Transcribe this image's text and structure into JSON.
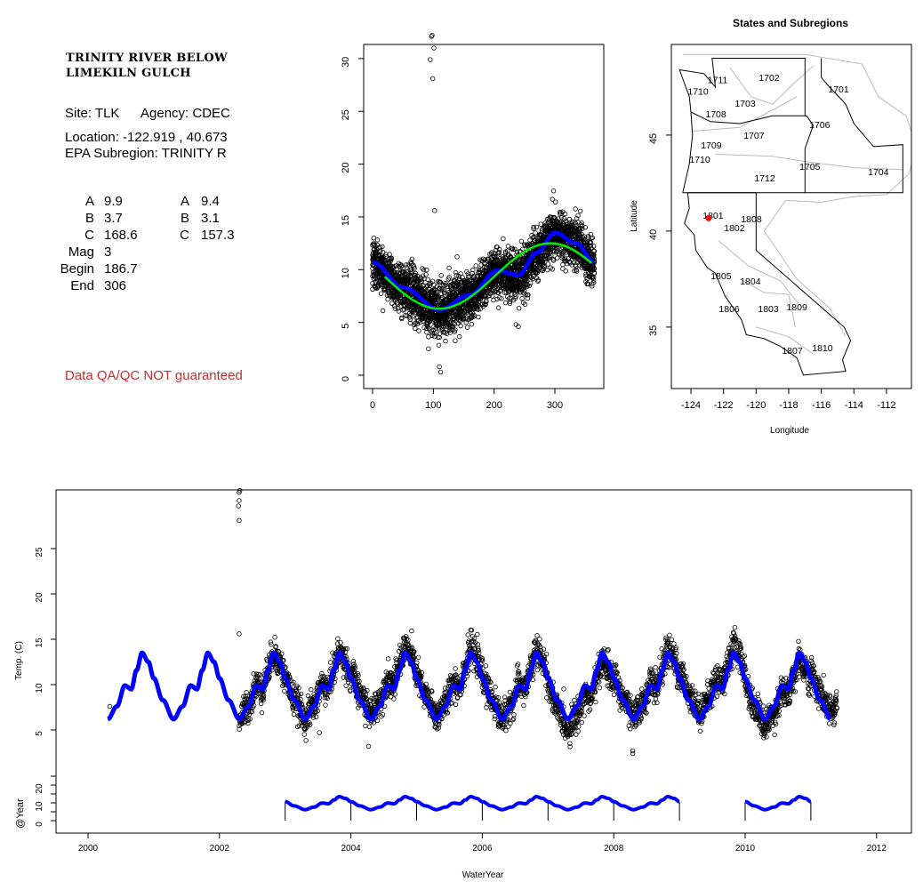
{
  "site": {
    "title_line1": "TRINITY RIVER BELOW",
    "title_line2": "LIMEKILN GULCH",
    "site_label": "Site: TLK",
    "agency_label": "Agency: CDEC",
    "location_label": "Location: -122.919 , 40.673",
    "subregion_label": "EPA Subregion: TRINITY R",
    "params_col1": [
      {
        "label": "A",
        "value": "9.9"
      },
      {
        "label": "B",
        "value": "3.7"
      },
      {
        "label": "C",
        "value": "168.6"
      },
      {
        "label": "Mag",
        "value": "3"
      },
      {
        "label": "Begin",
        "value": "186.7"
      },
      {
        "label": "End",
        "value": "306"
      }
    ],
    "params_col2": [
      {
        "label": "A",
        "value": "9.4"
      },
      {
        "label": "B",
        "value": "3.1"
      },
      {
        "label": "C",
        "value": "157.3"
      }
    ],
    "disclaimer": "Data QA/QC NOT guaranteed",
    "disclaimer_color": "#c03030"
  },
  "chart_data": [
    {
      "type": "scatter",
      "name": "day-of-water-year",
      "xlim": [
        -12,
        380
      ],
      "ylim": [
        -1.2,
        31.4
      ],
      "xticks": [
        0,
        100,
        200,
        300
      ],
      "yticks": [
        0,
        5,
        10,
        15,
        20,
        25,
        30
      ],
      "model_knots": [
        [
          0,
          10.7
        ],
        [
          50,
          8.3
        ],
        [
          110,
          6.2
        ],
        [
          160,
          7.6
        ],
        [
          205,
          9.9
        ],
        [
          240,
          9.5
        ],
        [
          270,
          11.6
        ],
        [
          300,
          13.5
        ],
        [
          335,
          12.5
        ],
        [
          365,
          10.7
        ]
      ],
      "sine_fit": {
        "A": 9.4,
        "B": 3.1,
        "min_day": 110,
        "from": 20,
        "to": 360
      },
      "outliers": [
        [
          97,
          32.1
        ],
        [
          98,
          32.2
        ],
        [
          101,
          31
        ],
        [
          95,
          29.9
        ],
        [
          99,
          28.1
        ],
        [
          102,
          15.6
        ],
        [
          110,
          0.8
        ],
        [
          112,
          0.3
        ],
        [
          92,
          2.5
        ],
        [
          236,
          4.8
        ],
        [
          240,
          4.6
        ]
      ],
      "colors": {
        "model": "#0000ff",
        "sine": "#00ee00",
        "points": "#000000"
      }
    },
    {
      "type": "map",
      "title": "States and Subregions",
      "xlabel": "Longitude",
      "ylabel": "Latitude",
      "xlim": [
        -125.2,
        -110.47
      ],
      "ylim": [
        31.8,
        49.72
      ],
      "xticks": [
        -124,
        -122,
        -120,
        -118,
        -116,
        -114,
        -112
      ],
      "yticks": [
        35,
        40,
        45
      ],
      "site": {
        "lon": -122.919,
        "lat": 40.673,
        "color": "#ff0000"
      },
      "state_borders": [
        [
          [
            -124.2,
            42
          ],
          [
            -120,
            42
          ],
          [
            -120,
            39
          ],
          [
            -114.6,
            35
          ],
          [
            -114.2,
            34.3
          ],
          [
            -114.7,
            33.3
          ],
          [
            -114.5,
            32.7
          ],
          [
            -117.1,
            32.5
          ],
          [
            -117.5,
            33.4
          ],
          [
            -118.5,
            34
          ],
          [
            -119.5,
            34.4
          ],
          [
            -120.6,
            34.6
          ],
          [
            -120.9,
            35.4
          ],
          [
            -121.9,
            36.6
          ],
          [
            -122.5,
            37.8
          ],
          [
            -123,
            38.1
          ],
          [
            -123.7,
            39
          ],
          [
            -123.8,
            39.8
          ],
          [
            -124.4,
            40.4
          ],
          [
            -124.1,
            41.2
          ],
          [
            -124.2,
            42
          ]
        ],
        [
          [
            -124.5,
            42
          ],
          [
            -124.1,
            43.5
          ],
          [
            -123.9,
            45
          ],
          [
            -124,
            46.2
          ],
          [
            -122.8,
            45.7
          ],
          [
            -121,
            45.6
          ],
          [
            -119,
            46
          ],
          [
            -116.9,
            46
          ],
          [
            -116.5,
            45.5
          ],
          [
            -117,
            44.3
          ],
          [
            -117,
            42
          ],
          [
            -124.5,
            42
          ]
        ],
        [
          [
            -124,
            46.2
          ],
          [
            -124.1,
            47
          ],
          [
            -124.7,
            48.4
          ],
          [
            -123.2,
            48.2
          ],
          [
            -122.5,
            47.5
          ],
          [
            -122.7,
            49
          ],
          [
            -117,
            49
          ],
          [
            -117,
            46
          ]
        ],
        [
          [
            -116,
            49
          ],
          [
            -116,
            48
          ],
          [
            -115.5,
            47.5
          ],
          [
            -114.7,
            46.8
          ],
          [
            -114.5,
            46.6
          ],
          [
            -114,
            45.6
          ],
          [
            -112.8,
            44.4
          ],
          [
            -111,
            44.5
          ],
          [
            -111,
            42
          ],
          [
            -117,
            42
          ]
        ]
      ],
      "subregions": [
        {
          "code": "1711",
          "lon": -122.36,
          "lat": 47.9
        },
        {
          "code": "1702",
          "lon": -119.2,
          "lat": 48.0
        },
        {
          "code": "1701",
          "lon": -114.94,
          "lat": 47.4
        },
        {
          "code": "1710",
          "lon": -123.56,
          "lat": 47.3
        },
        {
          "code": "1703",
          "lon": -120.67,
          "lat": 46.66
        },
        {
          "code": "1708",
          "lon": -122.47,
          "lat": 46.1
        },
        {
          "code": "1706",
          "lon": -116.1,
          "lat": 45.55
        },
        {
          "code": "1707",
          "lon": -120.13,
          "lat": 45.0
        },
        {
          "code": "1709",
          "lon": -122.75,
          "lat": 44.49
        },
        {
          "code": "1710",
          "lon": -123.45,
          "lat": 43.75
        },
        {
          "code": "1705",
          "lon": -116.7,
          "lat": 43.38
        },
        {
          "code": "1704",
          "lon": -112.5,
          "lat": 43.1
        },
        {
          "code": "1712",
          "lon": -119.47,
          "lat": 42.78
        },
        {
          "code": "1801",
          "lon": -122.64,
          "lat": 40.83
        },
        {
          "code": "1808",
          "lon": -120.29,
          "lat": 40.65
        },
        {
          "code": "1802",
          "lon": -121.33,
          "lat": 40.18
        },
        {
          "code": "1805",
          "lon": -122.15,
          "lat": 37.68
        },
        {
          "code": "1804",
          "lon": -120.35,
          "lat": 37.4
        },
        {
          "code": "1806",
          "lon": -121.65,
          "lat": 35.97
        },
        {
          "code": "1803",
          "lon": -119.25,
          "lat": 35.97
        },
        {
          "code": "1809",
          "lon": -117.5,
          "lat": 36.06
        },
        {
          "code": "1807",
          "lon": -117.78,
          "lat": 33.8
        },
        {
          "code": "1810",
          "lon": -115.93,
          "lat": 33.93
        }
      ]
    },
    {
      "type": "line",
      "name": "time-series",
      "xlabel": "WaterYear",
      "ylabel": "Temp. (C)",
      "ylabel2": "@Year",
      "xlim": [
        1999.52,
        2012.5
      ],
      "ylim": [
        -0.3,
        31.5
      ],
      "xticks": [
        2000,
        2002,
        2004,
        2006,
        2008,
        2010,
        2012
      ],
      "yticks": [
        5,
        10,
        15,
        20,
        25
      ],
      "sub_yticks": [
        0,
        5,
        10,
        15,
        20,
        25
      ],
      "sub_ylabels": [
        0,
        10,
        20
      ],
      "model_range": [
        2000.3,
        2011.3
      ],
      "data_range": [
        2002.3,
        2011.4
      ],
      "annual_segments": [
        [
          2003,
          2009
        ],
        [
          2010,
          2011
        ]
      ],
      "outliers": [
        [
          2000.33,
          7.6
        ],
        [
          2002.3,
          31.2
        ],
        [
          2002.31,
          31.4
        ],
        [
          2002.3,
          30.3
        ],
        [
          2002.29,
          29.7
        ],
        [
          2002.3,
          28.1
        ],
        [
          2002.3,
          15.6
        ],
        [
          2003.52,
          4.7
        ],
        [
          2004.27,
          3.2
        ],
        [
          2008.29,
          2.4
        ],
        [
          2008.29,
          2.7
        ]
      ]
    }
  ]
}
